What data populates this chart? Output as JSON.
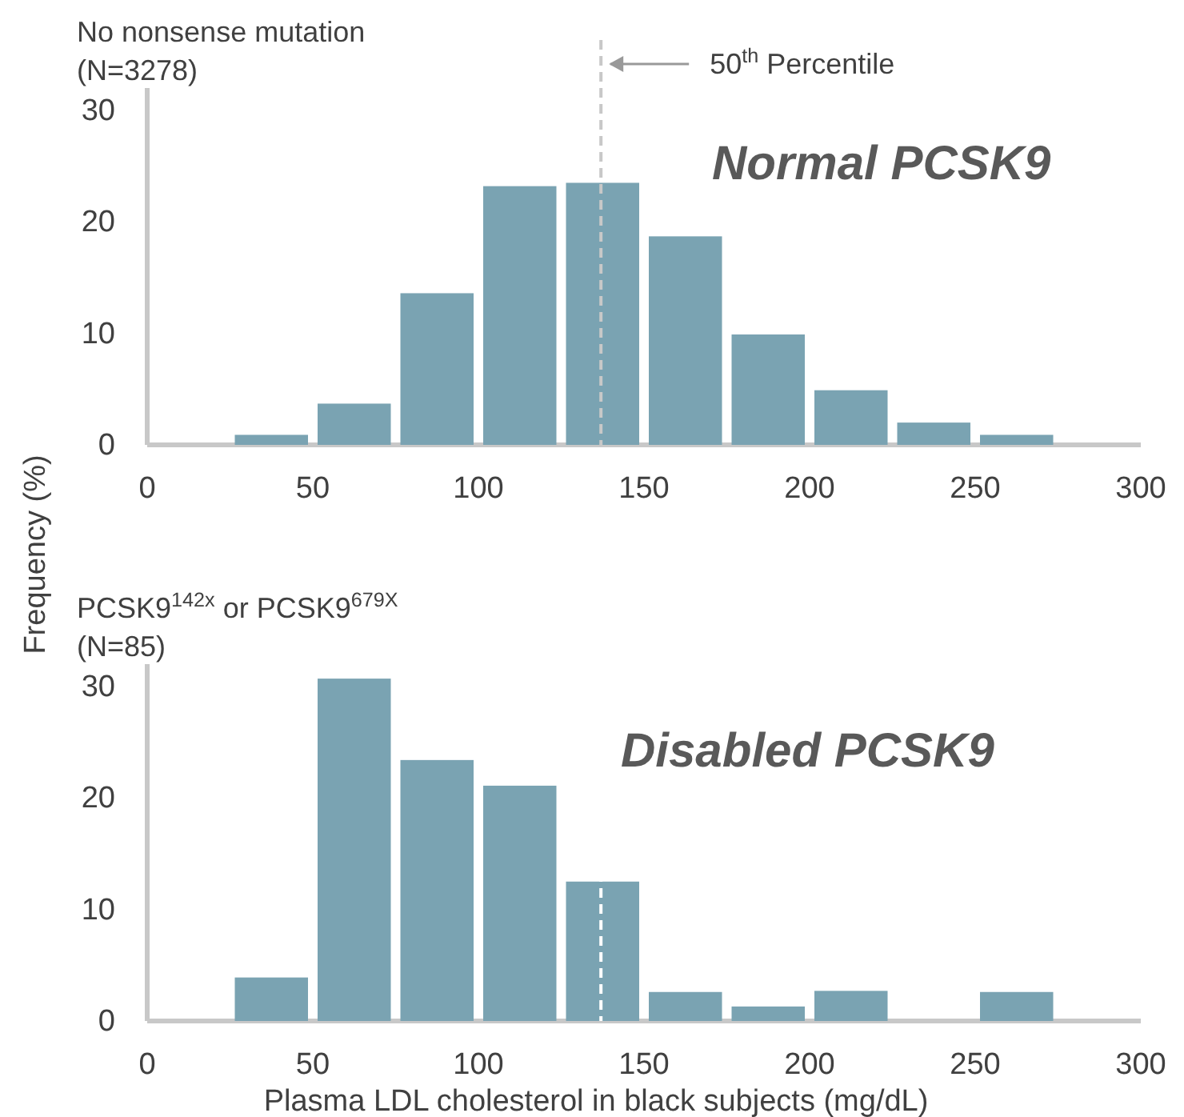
{
  "chart_data": [
    {
      "type": "histogram",
      "ylabel": "Frequency (%)",
      "annotations": [
        "No nonsense mutation\n(N=3278)",
        "Normal PCSK9"
      ],
      "bins": [
        25,
        50,
        75,
        100,
        125,
        150,
        175,
        200,
        225,
        250,
        275
      ],
      "values": [
        0.9,
        3.7,
        13.6,
        23.2,
        23.5,
        18.7,
        9.9,
        4.9,
        2.0,
        0.9
      ],
      "color": "#7aa3b2",
      "xlim": [
        0,
        300
      ],
      "xticks": [
        0,
        50,
        100,
        150,
        200,
        250,
        300
      ],
      "ylim": [
        0,
        32
      ],
      "yticks": [
        0,
        10,
        20,
        30
      ],
      "ref_lines": [
        {
          "axis": "x",
          "value": 137,
          "label": "50$^{th}$ Percentile",
          "line_style": "dashed",
          "color": "#c8c8c8"
        }
      ]
    },
    {
      "type": "histogram",
      "xlabel": "Plasma LDL cholesterol in black subjects (mg/dL)",
      "annotations": [
        "PCSK9$^{142x}$ or PCSK9$^{679X}$\n(N=85)",
        "Disabled PCSK9"
      ],
      "bins": [
        25,
        50,
        75,
        100,
        125,
        150,
        175,
        200,
        225,
        250,
        275
      ],
      "values": [
        3.9,
        30.7,
        23.4,
        21.1,
        12.5,
        2.6,
        1.3,
        2.7,
        0,
        2.6
      ],
      "color": "#7aa3b2",
      "xlim": [
        0,
        300
      ],
      "xticks": [
        0,
        50,
        100,
        150,
        200,
        250,
        300
      ],
      "ylim": [
        0,
        32
      ],
      "yticks": [
        0,
        10,
        20,
        30
      ],
      "ref_lines": [
        {
          "axis": "x",
          "value": 137,
          "line_style": "dashed",
          "color": "#ffffff"
        }
      ]
    }
  ]
}
